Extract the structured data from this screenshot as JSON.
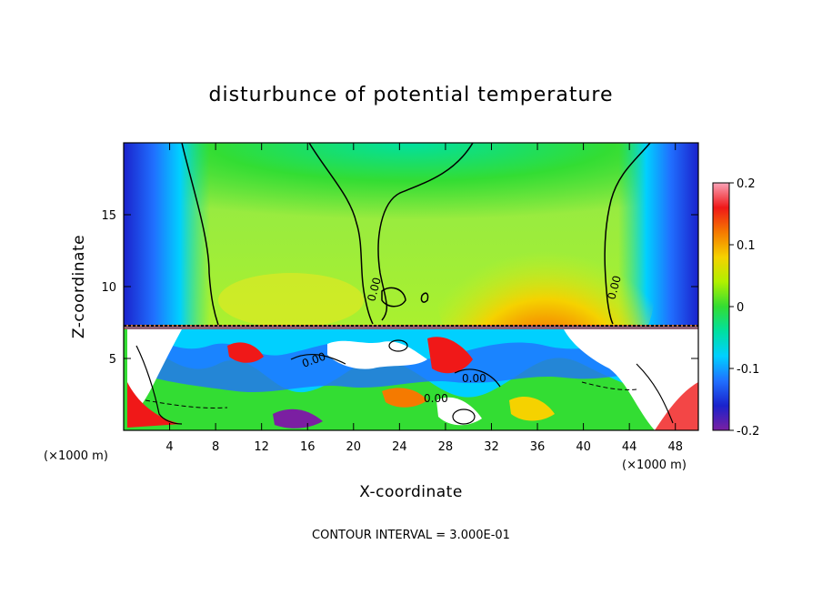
{
  "chart_data": {
    "type": "heatmap",
    "title": "disturbunce of potential temperature",
    "xlabel": "X-coordinate",
    "ylabel": "Z-coordinate",
    "x_unit_left": "(×1000 m)",
    "x_unit_right": "(×1000 m)",
    "x_ticks": [
      "4",
      "8",
      "12",
      "16",
      "20",
      "24",
      "28",
      "32",
      "36",
      "40",
      "44",
      "48"
    ],
    "y_ticks": [
      "5",
      "10",
      "15"
    ],
    "xlim": [
      0,
      50
    ],
    "ylim": [
      0,
      20
    ],
    "colorbar": {
      "ticks": [
        "0.2",
        "0.1",
        "0",
        "-0.1",
        "-0.2"
      ],
      "range": [
        -0.2,
        0.2
      ],
      "colors": [
        "#f9a3b8",
        "#f01818",
        "#f57a00",
        "#f5d200",
        "#b0f000",
        "#33dd33",
        "#00e0a0",
        "#00d0ff",
        "#2070ff",
        "#1a22cc",
        "#7b1fa2"
      ]
    },
    "contour_labels": [
      "0.00",
      "0.00",
      "0.00",
      "0.00",
      "0.00"
    ],
    "footer": "CONTOUR INTERVAL = 3.000E-01"
  }
}
